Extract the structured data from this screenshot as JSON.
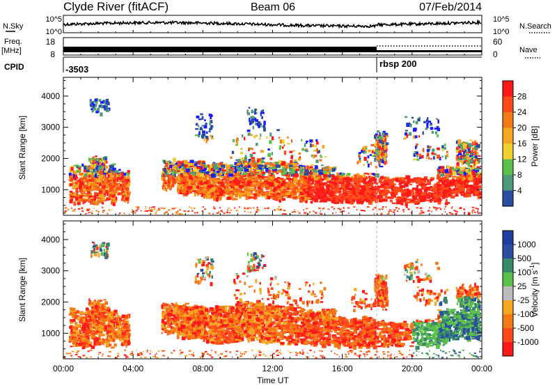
{
  "header": {
    "station": "Clyde River (fitACF)",
    "beam": "Beam 06",
    "date": "07/Feb/2014"
  },
  "left_labels": {
    "nsky": "N.Sky",
    "freq_line1": "Freq.",
    "freq_line2": "[MHz]",
    "cpid": "CPID"
  },
  "right_labels": {
    "nsearch": "N.Search",
    "nave": "Nave"
  },
  "nsky_ticks": [
    "10^5",
    "10^0"
  ],
  "nsearch_ticks": [
    "10^5",
    "10^0"
  ],
  "freq_ticks": [
    "18",
    "8"
  ],
  "nave_ticks": [
    "60",
    "0"
  ],
  "cpid_values": [
    "-3503",
    "rbsp 200"
  ],
  "x_axis": {
    "label": "Time UT",
    "ticks": [
      "00:00",
      "04:00",
      "08:00",
      "12:00",
      "16:00",
      "20:00",
      "00:00"
    ]
  },
  "colors": {
    "power": [
      "#1a1aff",
      "#2a4fa0",
      "#4e9a7a",
      "#5cc04a",
      "#f0cf30",
      "#f5a623",
      "#f47a18",
      "#ff4a1a",
      "#ff1a1a"
    ],
    "velocity": [
      "#2a4fa0",
      "#3a8a6a",
      "#5cc04a",
      "#bcbcbc",
      "#f5a623",
      "#f47a18",
      "#ff4a1a",
      "#ff1a1a"
    ]
  },
  "chart_data": [
    {
      "type": "heatmap",
      "title": "Power",
      "xlabel": "Time UT",
      "ylabel": "Slant Range [km]",
      "x_ticks": [
        "00:00",
        "04:00",
        "08:00",
        "12:00",
        "16:00",
        "20:00",
        "00:00"
      ],
      "xlim_hours": [
        0,
        24
      ],
      "ylim_km": [
        180,
        4600
      ],
      "y_ticks": [
        1000,
        2000,
        3000,
        4000
      ],
      "colorbar": {
        "label": "Power [dB]",
        "ticks": [
          4,
          8,
          12,
          16,
          20,
          24,
          28
        ],
        "range": [
          0,
          30
        ]
      }
    },
    {
      "type": "heatmap",
      "title": "Velocity",
      "xlabel": "Time UT",
      "ylabel": "Slant Range [km]",
      "x_ticks": [
        "00:00",
        "04:00",
        "08:00",
        "12:00",
        "16:00",
        "20:00",
        "00:00"
      ],
      "xlim_hours": [
        0,
        24
      ],
      "ylim_km": [
        180,
        4600
      ],
      "y_ticks": [
        1000,
        2000,
        3000,
        4000
      ],
      "colorbar": {
        "label_parts": [
          "Velocity ",
          "[m s",
          "-1",
          "]"
        ],
        "ticks": [
          1000,
          500,
          100,
          25,
          -25,
          -100,
          -500,
          -1000
        ]
      }
    }
  ]
}
